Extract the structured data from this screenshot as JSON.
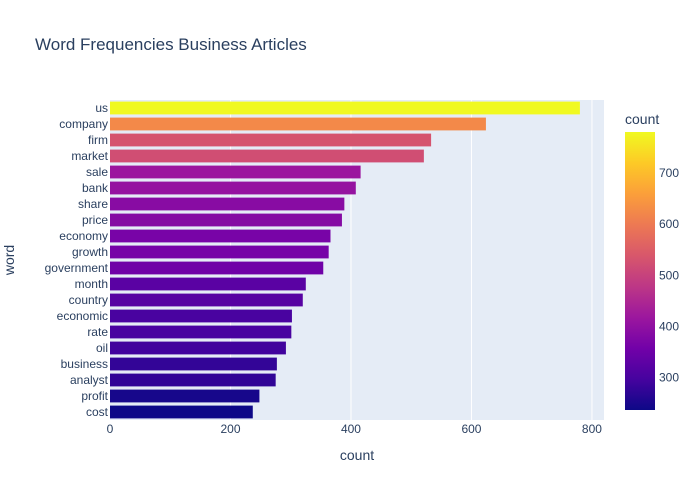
{
  "chart_data": {
    "type": "bar",
    "orientation": "horizontal",
    "title": "Word Frequencies Business Articles",
    "xlabel": "count",
    "ylabel": "word",
    "xlim": [
      0,
      820
    ],
    "x_ticks": [
      0,
      200,
      400,
      600,
      800
    ],
    "grid": true,
    "categories": [
      "us",
      "company",
      "firm",
      "market",
      "sale",
      "bank",
      "share",
      "price",
      "economy",
      "growth",
      "government",
      "month",
      "country",
      "economic",
      "rate",
      "oil",
      "business",
      "analyst",
      "profit",
      "cost"
    ],
    "values": [
      780,
      624,
      533,
      521,
      416,
      408,
      389,
      385,
      366,
      363,
      354,
      325,
      320,
      302,
      301,
      292,
      277,
      275,
      248,
      237
    ],
    "colorbar": {
      "title": "count",
      "range": [
        237,
        780
      ],
      "ticks": [
        300,
        400,
        500,
        600,
        700
      ],
      "colorscale": [
        "#0d0887",
        "#46039f",
        "#7201a8",
        "#9c179e",
        "#bd3786",
        "#d8576b",
        "#ed7953",
        "#fb9f3a",
        "#fdca26",
        "#f0f921"
      ]
    }
  }
}
